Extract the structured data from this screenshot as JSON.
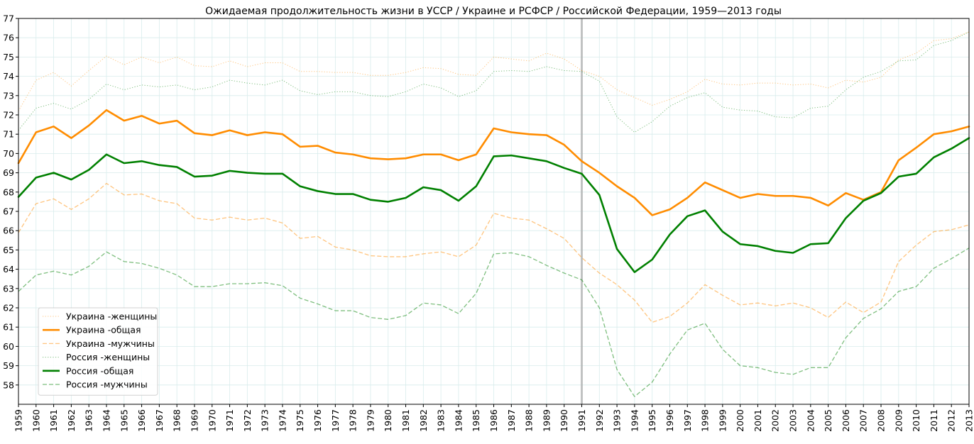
{
  "chart_data": {
    "type": "line",
    "title": "Ожидаемая продолжительность жизни в УССР / Украине и РСФСР / Российской Федерации, 1959—2013 годы",
    "xlabel": "",
    "ylabel": "",
    "x": [
      1959,
      1960,
      1961,
      1962,
      1963,
      1964,
      1965,
      1966,
      1967,
      1968,
      1969,
      1970,
      1971,
      1972,
      1973,
      1974,
      1975,
      1976,
      1977,
      1978,
      1979,
      1980,
      1981,
      1982,
      1983,
      1984,
      1985,
      1986,
      1987,
      1988,
      1989,
      1990,
      1991,
      1992,
      1993,
      1994,
      1995,
      1996,
      1997,
      1998,
      1999,
      2000,
      2001,
      2002,
      2003,
      2004,
      2005,
      2006,
      2007,
      2008,
      2009,
      2010,
      2011,
      2012,
      2013
    ],
    "xlim": [
      1959,
      2013
    ],
    "ylim": [
      57,
      77
    ],
    "yticks": [
      58,
      59,
      60,
      61,
      62,
      63,
      64,
      65,
      66,
      67,
      68,
      69,
      70,
      71,
      72,
      73,
      74,
      75,
      76,
      77
    ],
    "grid": true,
    "vline": 1991,
    "legend_position": "lower-left",
    "series": [
      {
        "name": "Украина -женщины",
        "color": "#ff8c00",
        "style": "dotted",
        "width": 1,
        "opacity": 0.5,
        "values": [
          72.2,
          73.8,
          74.2,
          73.5,
          74.3,
          75.05,
          74.6,
          75.0,
          74.7,
          75.0,
          74.55,
          74.5,
          74.8,
          74.5,
          74.7,
          74.7,
          74.25,
          74.25,
          74.2,
          74.2,
          74.05,
          74.05,
          74.2,
          74.45,
          74.4,
          74.1,
          74.05,
          75.0,
          74.9,
          74.8,
          75.2,
          74.9,
          74.3,
          74.0,
          73.3,
          72.9,
          72.5,
          72.8,
          73.2,
          73.85,
          73.6,
          73.55,
          73.65,
          73.65,
          73.55,
          73.6,
          73.4,
          73.8,
          73.7,
          73.95,
          74.85,
          75.2,
          75.85,
          75.95,
          76.3
        ]
      },
      {
        "name": "Украина -общая",
        "color": "#ff8c00",
        "style": "solid",
        "width": 2.6,
        "opacity": 1,
        "values": [
          69.5,
          71.1,
          71.4,
          70.8,
          71.45,
          72.25,
          71.7,
          71.95,
          71.55,
          71.7,
          71.05,
          70.95,
          71.2,
          70.95,
          71.1,
          71.0,
          70.35,
          70.4,
          70.05,
          69.95,
          69.75,
          69.7,
          69.75,
          69.95,
          69.95,
          69.65,
          69.95,
          71.3,
          71.1,
          71.0,
          70.95,
          70.45,
          69.6,
          69.0,
          68.3,
          67.7,
          66.8,
          67.1,
          67.7,
          68.5,
          68.1,
          67.7,
          67.9,
          67.8,
          67.8,
          67.7,
          67.3,
          67.95,
          67.6,
          68.0,
          69.65,
          70.3,
          71.0,
          71.15,
          71.4
        ]
      },
      {
        "name": "Украина -мужчины",
        "color": "#ff8c00",
        "style": "dashed",
        "width": 1.3,
        "opacity": 0.5,
        "values": [
          65.9,
          67.4,
          67.65,
          67.1,
          67.65,
          68.45,
          67.85,
          67.9,
          67.55,
          67.4,
          66.65,
          66.55,
          66.7,
          66.55,
          66.65,
          66.4,
          65.6,
          65.7,
          65.15,
          65.0,
          64.7,
          64.65,
          64.65,
          64.8,
          64.9,
          64.65,
          65.25,
          66.9,
          66.65,
          66.55,
          66.1,
          65.6,
          64.6,
          63.8,
          63.2,
          62.4,
          61.25,
          61.55,
          62.25,
          63.2,
          62.65,
          62.15,
          62.25,
          62.1,
          62.25,
          62.0,
          61.5,
          62.3,
          61.75,
          62.3,
          64.4,
          65.25,
          65.95,
          66.05,
          66.3
        ]
      },
      {
        "name": "Россия -женщины",
        "color": "#008000",
        "style": "dotted",
        "width": 1,
        "opacity": 0.5,
        "values": [
          71.2,
          72.35,
          72.6,
          72.3,
          72.8,
          73.6,
          73.3,
          73.55,
          73.45,
          73.55,
          73.3,
          73.45,
          73.8,
          73.65,
          73.55,
          73.8,
          73.25,
          73.05,
          73.2,
          73.2,
          73.0,
          72.95,
          73.2,
          73.6,
          73.4,
          72.95,
          73.25,
          74.25,
          74.3,
          74.25,
          74.5,
          74.3,
          74.25,
          73.75,
          71.9,
          71.1,
          71.65,
          72.45,
          72.9,
          73.15,
          72.4,
          72.25,
          72.2,
          71.9,
          71.85,
          72.35,
          72.45,
          73.3,
          73.95,
          74.25,
          74.8,
          74.85,
          75.6,
          75.85,
          76.3
        ]
      },
      {
        "name": "Россия -общая",
        "color": "#008000",
        "style": "solid",
        "width": 2.6,
        "opacity": 1,
        "values": [
          67.75,
          68.75,
          69.0,
          68.65,
          69.15,
          69.95,
          69.5,
          69.6,
          69.4,
          69.3,
          68.8,
          68.85,
          69.1,
          69.0,
          68.95,
          68.95,
          68.3,
          68.05,
          67.9,
          67.9,
          67.6,
          67.5,
          67.7,
          68.25,
          68.1,
          67.55,
          68.3,
          69.85,
          69.9,
          69.75,
          69.6,
          69.25,
          68.95,
          67.85,
          65.05,
          63.85,
          64.5,
          65.8,
          66.75,
          67.05,
          65.95,
          65.3,
          65.2,
          64.95,
          64.85,
          65.3,
          65.35,
          66.65,
          67.55,
          67.95,
          68.8,
          68.95,
          69.8,
          70.25,
          70.8
        ]
      },
      {
        "name": "Россия -мужчины",
        "color": "#008000",
        "style": "dashed",
        "width": 1.3,
        "opacity": 0.5,
        "values": [
          62.85,
          63.7,
          63.9,
          63.7,
          64.15,
          64.9,
          64.4,
          64.3,
          64.05,
          63.7,
          63.1,
          63.1,
          63.25,
          63.25,
          63.3,
          63.15,
          62.5,
          62.2,
          61.85,
          61.85,
          61.5,
          61.4,
          61.6,
          62.25,
          62.15,
          61.7,
          62.75,
          64.8,
          64.85,
          64.65,
          64.2,
          63.8,
          63.45,
          62.0,
          58.8,
          57.4,
          58.15,
          59.6,
          60.85,
          61.2,
          59.85,
          59.0,
          58.9,
          58.65,
          58.55,
          58.9,
          58.9,
          60.45,
          61.45,
          61.95,
          62.85,
          63.1,
          64.05,
          64.55,
          65.1
        ]
      }
    ]
  }
}
